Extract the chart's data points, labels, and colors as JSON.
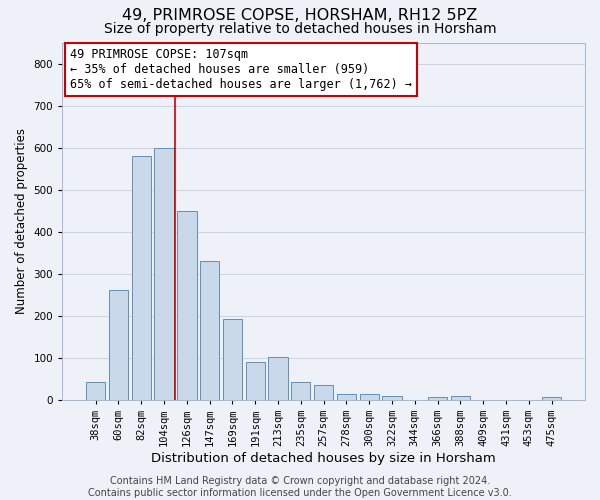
{
  "title1": "49, PRIMROSE COPSE, HORSHAM, RH12 5PZ",
  "title2": "Size of property relative to detached houses in Horsham",
  "xlabel": "Distribution of detached houses by size in Horsham",
  "ylabel": "Number of detached properties",
  "categories": [
    "38sqm",
    "60sqm",
    "82sqm",
    "104sqm",
    "126sqm",
    "147sqm",
    "169sqm",
    "191sqm",
    "213sqm",
    "235sqm",
    "257sqm",
    "278sqm",
    "300sqm",
    "322sqm",
    "344sqm",
    "366sqm",
    "388sqm",
    "409sqm",
    "431sqm",
    "453sqm",
    "475sqm"
  ],
  "values": [
    42,
    262,
    580,
    600,
    450,
    330,
    193,
    90,
    103,
    42,
    35,
    13,
    14,
    10,
    0,
    7,
    10,
    0,
    0,
    0,
    7
  ],
  "bar_color": "#c9d9ea",
  "bar_edge_color": "#6090b8",
  "bar_linewidth": 0.7,
  "grid_color": "#c8d4e4",
  "background_color": "#eef2f8",
  "red_line_index": 3,
  "annotation_text": "49 PRIMROSE COPSE: 107sqm\n← 35% of detached houses are smaller (959)\n65% of semi-detached houses are larger (1,762) →",
  "annotation_box_color": "#ffffff",
  "annotation_box_edge": "#cc0000",
  "ylim": [
    0,
    850
  ],
  "yticks": [
    0,
    100,
    200,
    300,
    400,
    500,
    600,
    700,
    800
  ],
  "footer1": "Contains HM Land Registry data © Crown copyright and database right 2024.",
  "footer2": "Contains public sector information licensed under the Open Government Licence v3.0.",
  "title1_fontsize": 11.5,
  "title2_fontsize": 10,
  "xlabel_fontsize": 9.5,
  "ylabel_fontsize": 8.5,
  "tick_fontsize": 7.5,
  "annot_fontsize": 8.5,
  "footer_fontsize": 7
}
